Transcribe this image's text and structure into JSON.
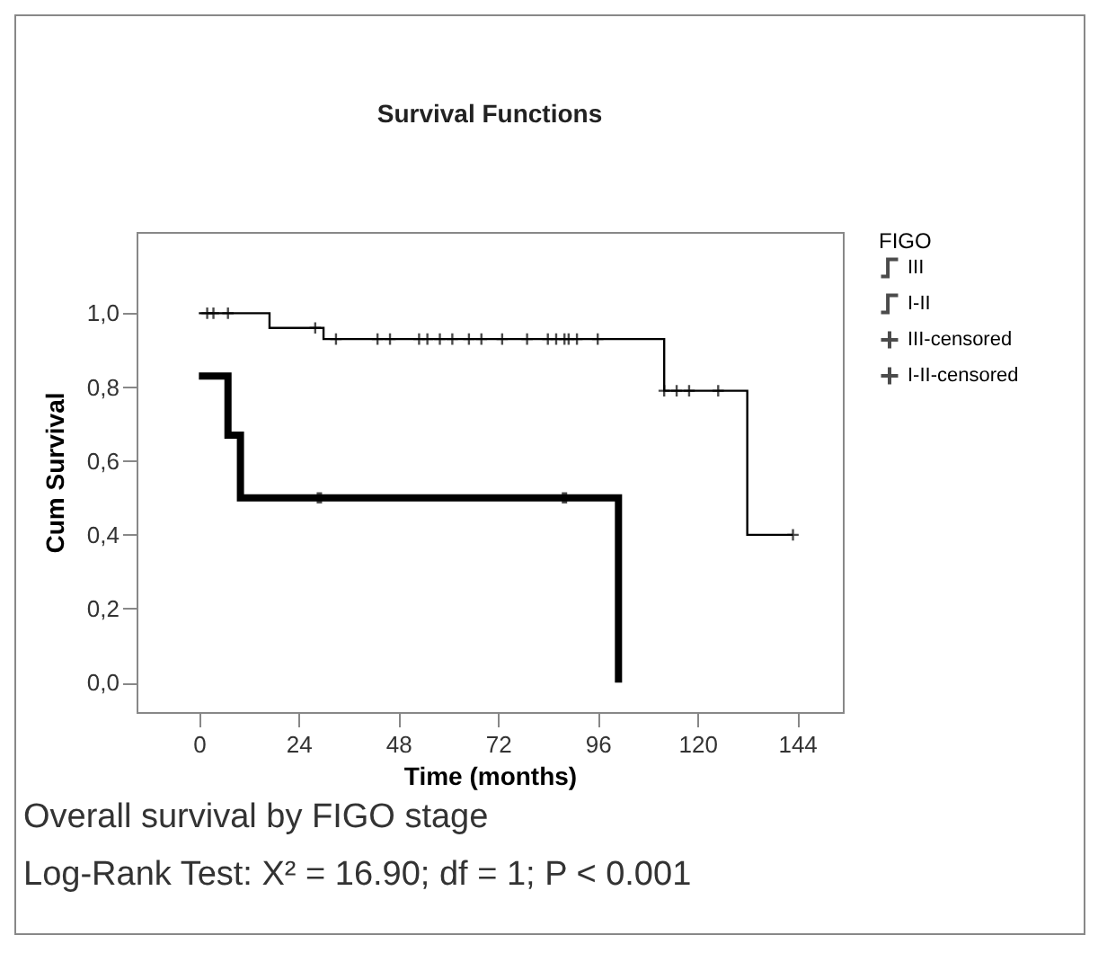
{
  "chart_data": {
    "type": "step",
    "title": "Survival Functions",
    "xlabel": "Time (months)",
    "ylabel": "Cum Survival",
    "legend_title": "FIGO",
    "xlim": [
      -15,
      155
    ],
    "ylim": [
      -0.08,
      1.22
    ],
    "xticks": [
      0,
      24,
      48,
      72,
      96,
      120,
      144
    ],
    "yticks": [
      {
        "value": 0,
        "label": "0,0"
      },
      {
        "value": 0.2,
        "label": "0,2"
      },
      {
        "value": 0.4,
        "label": "0,4"
      },
      {
        "value": 0.6,
        "label": "0,6"
      },
      {
        "value": 0.8,
        "label": "0,8"
      },
      {
        "value": 1,
        "label": "1,0"
      }
    ],
    "grid": false,
    "legend": "top right",
    "series": [
      {
        "name": "III",
        "color": "#000000",
        "x": [
          0,
          7,
          10,
          101
        ],
        "values": [
          0.83,
          0.67,
          0.5,
          0.0
        ]
      },
      {
        "name": "I-II",
        "color": "#000000",
        "x": [
          0,
          17,
          30,
          112,
          132,
          143
        ],
        "values": [
          1.0,
          0.96,
          0.93,
          0.79,
          0.4,
          0.4
        ]
      },
      {
        "name": "III-censored",
        "type": "scatter",
        "marker": "cross",
        "color": "#000000",
        "x": [
          29,
          88
        ],
        "values": [
          0.5,
          0.5
        ]
      },
      {
        "name": "I-II-censored",
        "type": "scatter",
        "marker": "cross",
        "color": "#000000",
        "x": [
          2,
          3.5,
          7,
          28,
          33,
          43,
          46,
          53,
          55,
          58,
          61,
          65,
          68,
          73,
          79,
          84,
          86,
          88,
          89,
          91,
          96,
          112,
          115,
          118,
          125,
          143
        ],
        "values": [
          1.0,
          1.0,
          1.0,
          0.96,
          0.93,
          0.93,
          0.93,
          0.93,
          0.93,
          0.93,
          0.93,
          0.93,
          0.93,
          0.93,
          0.93,
          0.93,
          0.93,
          0.93,
          0.93,
          0.93,
          0.93,
          0.79,
          0.79,
          0.79,
          0.79,
          0.4
        ]
      }
    ],
    "annotations": [
      "Overall survival by FIGO stage",
      "Log-Rank Test: X² = 16.90; df = 1; P < 0.001"
    ]
  }
}
